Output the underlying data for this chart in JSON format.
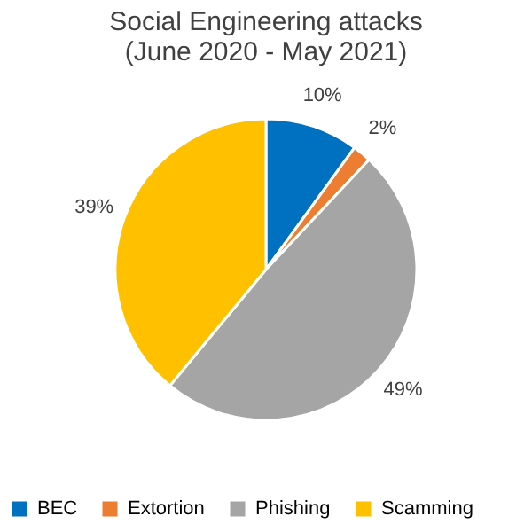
{
  "chart_data": {
    "type": "pie",
    "title": "Social Engineering attacks (June 2020 - May 2021)",
    "categories": [
      "BEC",
      "Extortion",
      "Phishing",
      "Scamming"
    ],
    "values": [
      10,
      2,
      49,
      39
    ],
    "colors": [
      "#0070c0",
      "#ed7d31",
      "#a5a5a5",
      "#ffc000"
    ],
    "value_labels": [
      "10%",
      "2%",
      "49%",
      "39%"
    ],
    "legend": "bottom"
  }
}
